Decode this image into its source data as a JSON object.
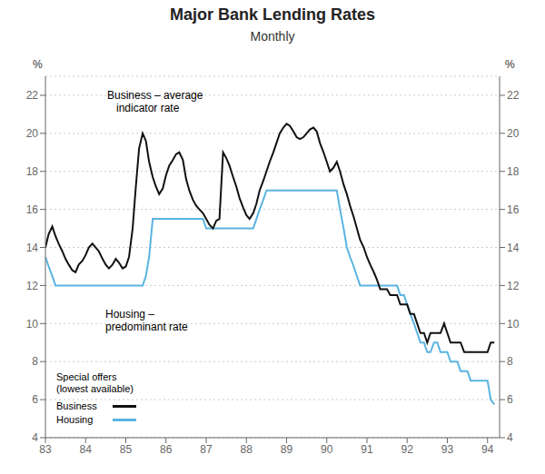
{
  "chart_data": {
    "type": "line",
    "title": "Major Bank Lending Rates",
    "subtitle": "Monthly",
    "ylabel": "%",
    "y2label": "%",
    "annotations": [
      "Business – average\n   indicator rate",
      "Housing –\npredominant rate",
      "Special offers\n(lowest available)"
    ],
    "xlim": [
      1983.0,
      1994.3
    ],
    "xticks": [
      {
        "value": 1983,
        "label": "83"
      },
      {
        "value": 1984,
        "label": "84"
      },
      {
        "value": 1985,
        "label": "85"
      },
      {
        "value": 1986,
        "label": "86"
      },
      {
        "value": 1987,
        "label": "87"
      },
      {
        "value": 1988,
        "label": "88"
      },
      {
        "value": 1989,
        "label": "89"
      },
      {
        "value": 1990,
        "label": "90"
      },
      {
        "value": 1991,
        "label": "91"
      },
      {
        "value": 1992,
        "label": "92"
      },
      {
        "value": 1993,
        "label": "93"
      },
      {
        "value": 1994,
        "label": "94"
      }
    ],
    "ylim": [
      4,
      23
    ],
    "yticks": [
      4,
      6,
      8,
      10,
      12,
      14,
      16,
      18,
      20,
      22
    ],
    "y2lim": [
      4,
      23
    ],
    "y2ticks": [
      4,
      6,
      8,
      10,
      12,
      14,
      16,
      18,
      20,
      22
    ],
    "grid": true,
    "legend": "lower left",
    "x": [
      1983.0,
      1983.08,
      1983.17,
      1983.25,
      1983.33,
      1983.42,
      1983.5,
      1983.58,
      1983.67,
      1983.75,
      1983.83,
      1983.92,
      1984.0,
      1984.08,
      1984.17,
      1984.25,
      1984.33,
      1984.42,
      1984.5,
      1984.58,
      1984.67,
      1984.75,
      1984.83,
      1984.92,
      1985.0,
      1985.08,
      1985.17,
      1985.25,
      1985.33,
      1985.42,
      1985.5,
      1985.58,
      1985.67,
      1985.75,
      1985.83,
      1985.92,
      1986.0,
      1986.08,
      1986.17,
      1986.25,
      1986.33,
      1986.42,
      1986.5,
      1986.58,
      1986.67,
      1986.75,
      1986.83,
      1986.92,
      1987.0,
      1987.08,
      1987.17,
      1987.25,
      1987.33,
      1987.42,
      1987.5,
      1987.58,
      1987.67,
      1987.75,
      1987.83,
      1987.92,
      1988.0,
      1988.08,
      1988.17,
      1988.25,
      1988.33,
      1988.42,
      1988.5,
      1988.58,
      1988.67,
      1988.75,
      1988.83,
      1988.92,
      1989.0,
      1989.08,
      1989.17,
      1989.25,
      1989.33,
      1989.42,
      1989.5,
      1989.58,
      1989.67,
      1989.75,
      1989.83,
      1989.92,
      1990.0,
      1990.08,
      1990.17,
      1990.25,
      1990.33,
      1990.42,
      1990.5,
      1990.58,
      1990.67,
      1990.75,
      1990.83,
      1990.92,
      1991.0,
      1991.08,
      1991.17,
      1991.25,
      1991.33,
      1991.42,
      1991.5,
      1991.58,
      1991.67,
      1991.75,
      1991.83,
      1991.92,
      1992.0,
      1992.08,
      1992.17,
      1992.25,
      1992.33,
      1992.42,
      1992.5,
      1992.58,
      1992.67,
      1992.75,
      1992.83,
      1992.92,
      1993.0,
      1993.08,
      1993.17,
      1993.25,
      1993.33,
      1993.42,
      1993.5,
      1993.58,
      1993.67,
      1993.75,
      1993.83,
      1993.92,
      1994.0,
      1994.08,
      1994.17
    ],
    "series": [
      {
        "name": "Business",
        "color": "#111111",
        "values": [
          14.0,
          14.7,
          15.1,
          14.6,
          14.2,
          13.8,
          13.4,
          13.1,
          12.8,
          12.7,
          13.1,
          13.3,
          13.6,
          14.0,
          14.2,
          14.0,
          13.8,
          13.4,
          13.1,
          12.9,
          13.1,
          13.4,
          13.2,
          12.9,
          13.0,
          13.5,
          15.0,
          17.2,
          19.2,
          20.0,
          19.6,
          18.5,
          17.7,
          17.2,
          16.8,
          17.1,
          17.8,
          18.3,
          18.6,
          18.9,
          19.0,
          18.6,
          17.6,
          17.0,
          16.5,
          16.2,
          16.0,
          15.8,
          15.5,
          15.2,
          15.0,
          15.4,
          15.5,
          19.0,
          18.7,
          18.3,
          17.7,
          17.2,
          16.6,
          16.1,
          15.7,
          15.5,
          15.8,
          16.3,
          17.0,
          17.5,
          18.0,
          18.5,
          19.0,
          19.5,
          20.0,
          20.3,
          20.5,
          20.4,
          20.1,
          19.8,
          19.7,
          19.8,
          20.0,
          20.2,
          20.3,
          20.1,
          19.5,
          19.0,
          18.5,
          18.0,
          18.2,
          18.5,
          18.0,
          17.3,
          16.8,
          16.2,
          15.6,
          15.0,
          14.4,
          14.0,
          13.5,
          13.1,
          12.7,
          12.3,
          11.8,
          11.8,
          11.8,
          11.5,
          11.5,
          11.5,
          11.0,
          11.0,
          11.0,
          10.5,
          10.5,
          10.0,
          9.5,
          9.5,
          9.0,
          9.5,
          9.5,
          9.5,
          9.5,
          10.0,
          9.5,
          9.0,
          9.0,
          9.0,
          9.0,
          8.5,
          8.5,
          8.5,
          8.5,
          8.5,
          8.5,
          8.5,
          8.5,
          9.0,
          9.0
        ]
      },
      {
        "name": "Housing",
        "color": "#5ab4e0",
        "values": [
          13.5,
          13.0,
          12.5,
          12.0,
          12.0,
          12.0,
          12.0,
          12.0,
          12.0,
          12.0,
          12.0,
          12.0,
          12.0,
          12.0,
          12.0,
          12.0,
          12.0,
          12.0,
          12.0,
          12.0,
          12.0,
          12.0,
          12.0,
          12.0,
          12.0,
          12.0,
          12.0,
          12.0,
          12.0,
          12.0,
          12.5,
          13.5,
          15.5,
          15.5,
          15.5,
          15.5,
          15.5,
          15.5,
          15.5,
          15.5,
          15.5,
          15.5,
          15.5,
          15.5,
          15.5,
          15.5,
          15.5,
          15.5,
          15.0,
          15.0,
          15.0,
          15.0,
          15.0,
          15.0,
          15.0,
          15.0,
          15.0,
          15.0,
          15.0,
          15.0,
          15.0,
          15.0,
          15.0,
          15.5,
          16.0,
          16.5,
          17.0,
          17.0,
          17.0,
          17.0,
          17.0,
          17.0,
          17.0,
          17.0,
          17.0,
          17.0,
          17.0,
          17.0,
          17.0,
          17.0,
          17.0,
          17.0,
          17.0,
          17.0,
          17.0,
          17.0,
          17.0,
          17.0,
          16.0,
          15.0,
          14.0,
          13.5,
          13.0,
          12.5,
          12.0,
          12.0,
          12.0,
          12.0,
          12.0,
          12.0,
          12.0,
          12.0,
          12.0,
          12.0,
          12.0,
          12.0,
          11.5,
          11.5,
          11.0,
          10.5,
          10.0,
          9.5,
          9.0,
          9.0,
          8.5,
          8.5,
          9.0,
          9.0,
          8.5,
          8.5,
          8.5,
          8.0,
          8.0,
          8.0,
          7.5,
          7.5,
          7.5,
          7.0,
          7.0,
          7.0,
          7.0,
          7.0,
          7.0,
          6.0,
          5.75
        ]
      }
    ]
  }
}
